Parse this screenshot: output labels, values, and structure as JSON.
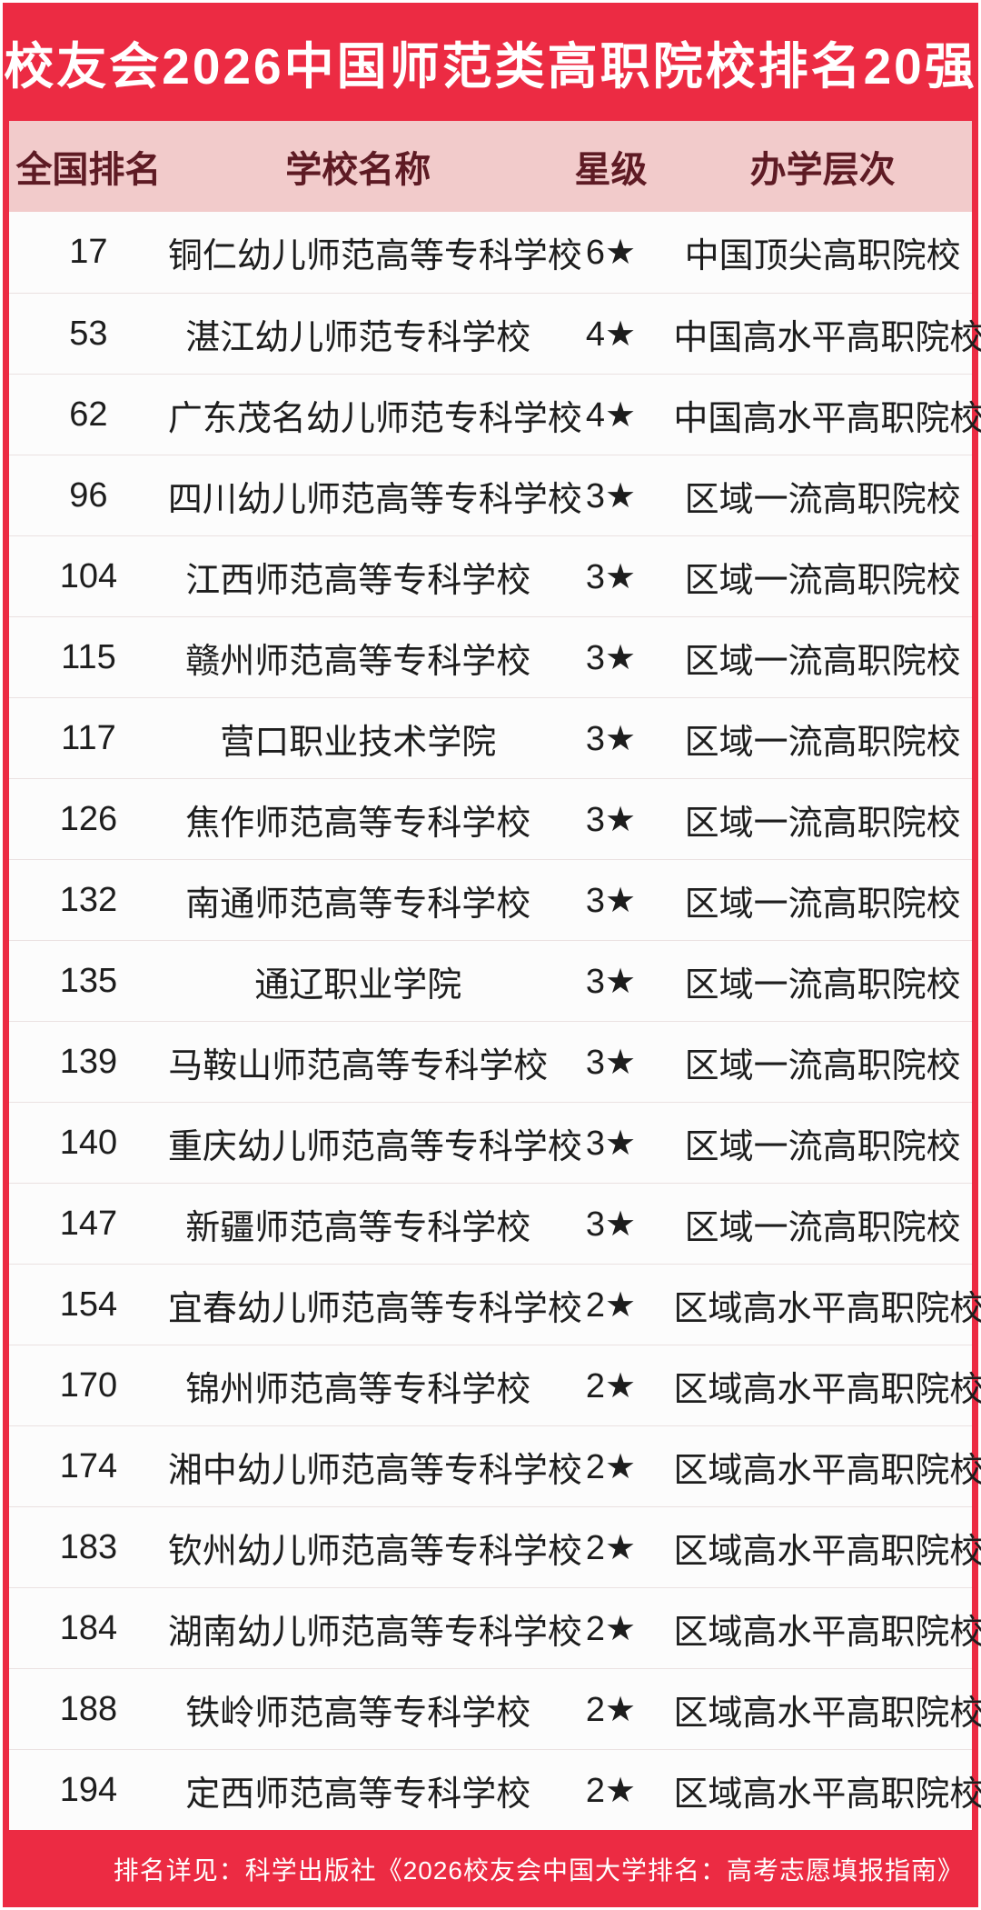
{
  "title": "校友会2026中国师范类高职院校排名20强",
  "table": {
    "columns": [
      "全国排名",
      "学校名称",
      "星级",
      "办学层次"
    ],
    "rows": [
      {
        "rank": "17",
        "school": "铜仁幼儿师范高等专科学校",
        "star": "6★",
        "level": "中国顶尖高职院校"
      },
      {
        "rank": "53",
        "school": "湛江幼儿师范专科学校",
        "star": "4★",
        "level": "中国高水平高职院校"
      },
      {
        "rank": "62",
        "school": "广东茂名幼儿师范专科学校",
        "star": "4★",
        "level": "中国高水平高职院校"
      },
      {
        "rank": "96",
        "school": "四川幼儿师范高等专科学校",
        "star": "3★",
        "level": "区域一流高职院校"
      },
      {
        "rank": "104",
        "school": "江西师范高等专科学校",
        "star": "3★",
        "level": "区域一流高职院校"
      },
      {
        "rank": "115",
        "school": "赣州师范高等专科学校",
        "star": "3★",
        "level": "区域一流高职院校"
      },
      {
        "rank": "117",
        "school": "营口职业技术学院",
        "star": "3★",
        "level": "区域一流高职院校"
      },
      {
        "rank": "126",
        "school": "焦作师范高等专科学校",
        "star": "3★",
        "level": "区域一流高职院校"
      },
      {
        "rank": "132",
        "school": "南通师范高等专科学校",
        "star": "3★",
        "level": "区域一流高职院校"
      },
      {
        "rank": "135",
        "school": "通辽职业学院",
        "star": "3★",
        "level": "区域一流高职院校"
      },
      {
        "rank": "139",
        "school": "马鞍山师范高等专科学校",
        "star": "3★",
        "level": "区域一流高职院校"
      },
      {
        "rank": "140",
        "school": "重庆幼儿师范高等专科学校",
        "star": "3★",
        "level": "区域一流高职院校"
      },
      {
        "rank": "147",
        "school": "新疆师范高等专科学校",
        "star": "3★",
        "level": "区域一流高职院校"
      },
      {
        "rank": "154",
        "school": "宜春幼儿师范高等专科学校",
        "star": "2★",
        "level": "区域高水平高职院校"
      },
      {
        "rank": "170",
        "school": "锦州师范高等专科学校",
        "star": "2★",
        "level": "区域高水平高职院校"
      },
      {
        "rank": "174",
        "school": "湘中幼儿师范高等专科学校",
        "star": "2★",
        "level": "区域高水平高职院校"
      },
      {
        "rank": "183",
        "school": "钦州幼儿师范高等专科学校",
        "star": "2★",
        "level": "区域高水平高职院校"
      },
      {
        "rank": "184",
        "school": "湖南幼儿师范高等专科学校",
        "star": "2★",
        "level": "区域高水平高职院校"
      },
      {
        "rank": "188",
        "school": "铁岭师范高等专科学校",
        "star": "2★",
        "level": "区域高水平高职院校"
      },
      {
        "rank": "194",
        "school": "定西师范高等专科学校",
        "star": "2★",
        "level": "区域高水平高职院校"
      }
    ]
  },
  "footer": {
    "note": "排名详见：科学出版社《2026校友会中国大学排名：高考志愿填报指南》"
  },
  "colors": {
    "background_red": "#EC2B43",
    "header_pink": "#F2CBCB",
    "header_text_maroon": "#5E1B24",
    "body_text": "#1D1D1D",
    "row_divider": "#EAE1E1",
    "card_white": "#FCFCFC",
    "title_white": "#FFFFFF"
  },
  "chart_data": {
    "type": "table",
    "title": "校友会2026中国师范类高职院校排名20强",
    "columns": [
      "全国排名",
      "学校名称",
      "星级",
      "办学层次"
    ],
    "rows": [
      [
        "17",
        "铜仁幼儿师范高等专科学校",
        "6★",
        "中国顶尖高职院校"
      ],
      [
        "53",
        "湛江幼儿师范专科学校",
        "4★",
        "中国高水平高职院校"
      ],
      [
        "62",
        "广东茂名幼儿师范专科学校",
        "4★",
        "中国高水平高职院校"
      ],
      [
        "96",
        "四川幼儿师范高等专科学校",
        "3★",
        "区域一流高职院校"
      ],
      [
        "104",
        "江西师范高等专科学校",
        "3★",
        "区域一流高职院校"
      ],
      [
        "115",
        "赣州师范高等专科学校",
        "3★",
        "区域一流高职院校"
      ],
      [
        "117",
        "营口职业技术学院",
        "3★",
        "区域一流高职院校"
      ],
      [
        "126",
        "焦作师范高等专科学校",
        "3★",
        "区域一流高职院校"
      ],
      [
        "132",
        "南通师范高等专科学校",
        "3★",
        "区域一流高职院校"
      ],
      [
        "135",
        "通辽职业学院",
        "3★",
        "区域一流高职院校"
      ],
      [
        "139",
        "马鞍山师范高等专科学校",
        "3★",
        "区域一流高职院校"
      ],
      [
        "140",
        "重庆幼儿师范高等专科学校",
        "3★",
        "区域一流高职院校"
      ],
      [
        "147",
        "新疆师范高等专科学校",
        "3★",
        "区域一流高职院校"
      ],
      [
        "154",
        "宜春幼儿师范高等专科学校",
        "2★",
        "区域高水平高职院校"
      ],
      [
        "170",
        "锦州师范高等专科学校",
        "2★",
        "区域高水平高职院校"
      ],
      [
        "174",
        "湘中幼儿师范高等专科学校",
        "2★",
        "区域高水平高职院校"
      ],
      [
        "183",
        "钦州幼儿师范高等专科学校",
        "2★",
        "区域高水平高职院校"
      ],
      [
        "184",
        "湖南幼儿师范高等专科学校",
        "2★",
        "区域高水平高职院校"
      ],
      [
        "188",
        "铁岭师范高等专科学校",
        "2★",
        "区域高水平高职院校"
      ],
      [
        "194",
        "定西师范高等专科学校",
        "2★",
        "区域高水平高职院校"
      ]
    ]
  }
}
